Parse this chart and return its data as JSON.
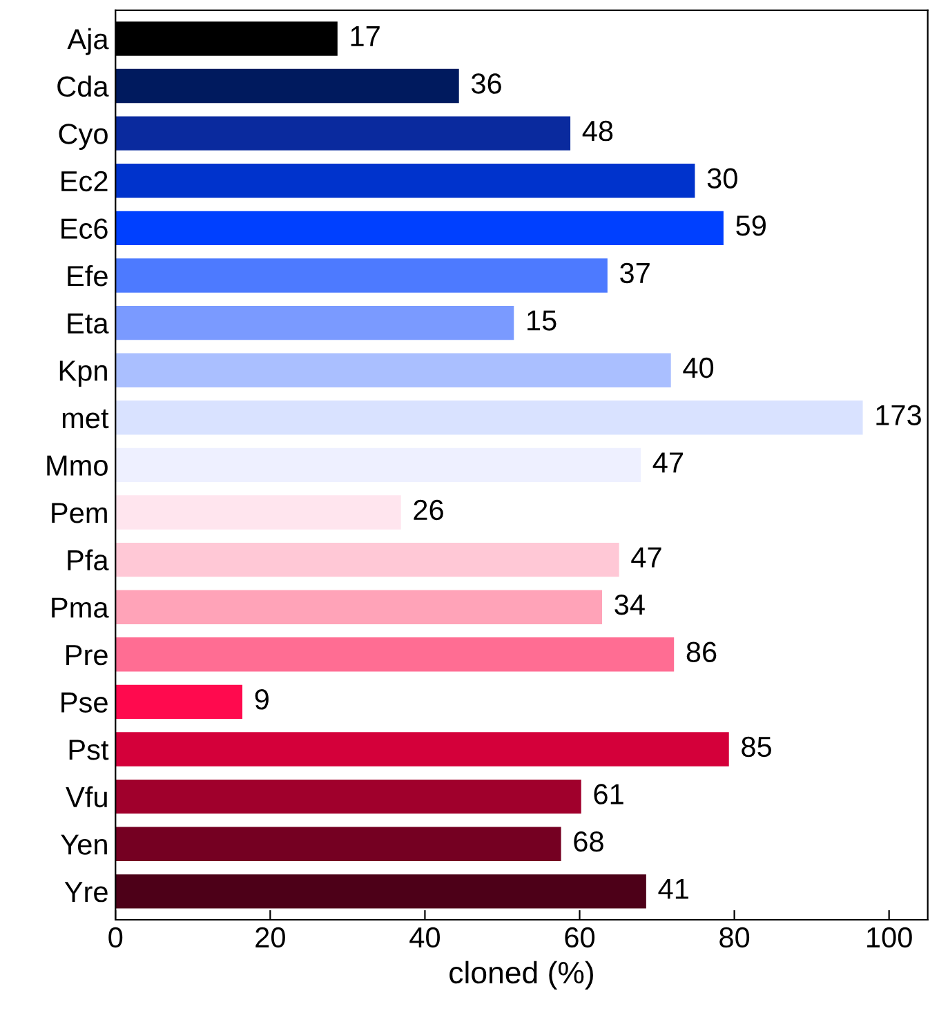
{
  "chart_data": {
    "type": "bar",
    "orientation": "horizontal",
    "xlabel": "cloned (%)",
    "categories": [
      "Aja",
      "Cda",
      "Cyo",
      "Ec2",
      "Ec6",
      "Efe",
      "Eta",
      "Kpn",
      "met",
      "Mmo",
      "Pem",
      "Pfa",
      "Pma",
      "Pre",
      "Pse",
      "Pst",
      "Vfu",
      "Yen",
      "Yre"
    ],
    "values": [
      28.7,
      44.4,
      58.8,
      74.9,
      78.6,
      63.6,
      51.5,
      71.8,
      96.6,
      67.9,
      36.9,
      65.1,
      62.9,
      72.2,
      16.4,
      79.3,
      60.2,
      57.6,
      68.6
    ],
    "annotations": [
      {
        "text": "17",
        "x": 28.7,
        "y": "Aja"
      },
      {
        "text": "36",
        "x": 44.4,
        "y": "Cda"
      },
      {
        "text": "48",
        "x": 58.8,
        "y": "Cyo"
      },
      {
        "text": "30",
        "x": 74.9,
        "y": "Ec2"
      },
      {
        "text": "59",
        "x": 78.6,
        "y": "Ec6"
      },
      {
        "text": "37",
        "x": 63.6,
        "y": "Efe"
      },
      {
        "text": "15",
        "x": 51.5,
        "y": "Eta"
      },
      {
        "text": "40",
        "x": 71.8,
        "y": "Kpn"
      },
      {
        "text": "173",
        "x": 96.6,
        "y": "met"
      },
      {
        "text": "47",
        "x": 67.9,
        "y": "Mmo"
      },
      {
        "text": "26",
        "x": 36.9,
        "y": "Pem"
      },
      {
        "text": "47",
        "x": 65.1,
        "y": "Pfa"
      },
      {
        "text": "34",
        "x": 62.9,
        "y": "Pma"
      },
      {
        "text": "86",
        "x": 72.2,
        "y": "Pre"
      },
      {
        "text": "9",
        "x": 16.4,
        "y": "Pse"
      },
      {
        "text": "85",
        "x": 79.3,
        "y": "Pst"
      },
      {
        "text": "61",
        "x": 60.2,
        "y": "Vfu"
      },
      {
        "text": "68",
        "x": 57.6,
        "y": "Yen"
      },
      {
        "text": "41",
        "x": 68.6,
        "y": "Yre"
      }
    ],
    "colors": [
      "#000000",
      "#001a5e",
      "#0a2a9e",
      "#0033cc",
      "#0040ff",
      "#4d7aff",
      "#7a9aff",
      "#aabfff",
      "#d9e2ff",
      "#eef0ff",
      "#ffe5ee",
      "#ffc8d6",
      "#ffa3b8",
      "#ff6d93",
      "#ff0a4e",
      "#d4003a",
      "#a0002c",
      "#750022",
      "#4d0018"
    ],
    "xlim": [
      0,
      105
    ],
    "xticks": [
      0,
      20,
      40,
      60,
      80,
      100
    ],
    "grid": false,
    "legend": false
  }
}
